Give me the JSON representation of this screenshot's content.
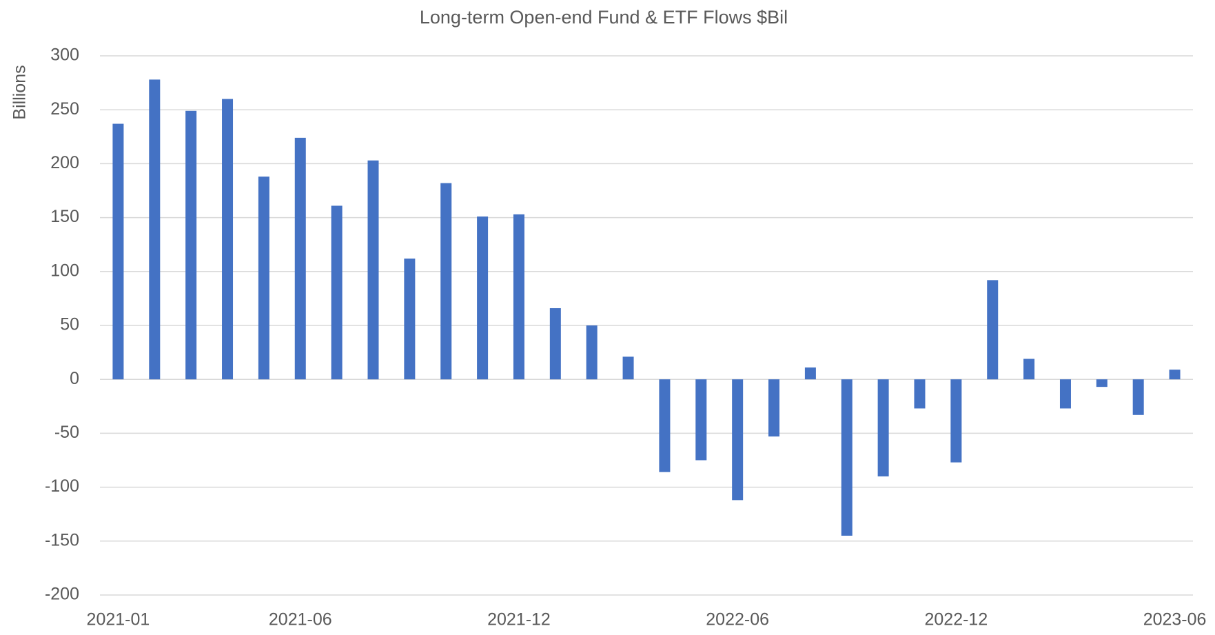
{
  "chart_data": {
    "type": "bar",
    "title": "Long-term Open-end Fund & ETF Flows $Bil",
    "y_label": "Billions",
    "categories": [
      "2021-01",
      null,
      null,
      null,
      null,
      "2021-06",
      null,
      null,
      null,
      null,
      null,
      "2021-12",
      null,
      null,
      null,
      null,
      null,
      "2022-06",
      null,
      null,
      null,
      null,
      null,
      "2022-12",
      null,
      null,
      null,
      null,
      null,
      "2023-06"
    ],
    "values": [
      237,
      278,
      249,
      260,
      188,
      224,
      161,
      203,
      112,
      182,
      151,
      153,
      66,
      50,
      21,
      -86,
      -75,
      -112,
      -53,
      11,
      -145,
      -90,
      -27,
      -77,
      92,
      19,
      -27,
      -7,
      -33,
      9
    ],
    "color": "#4472c4",
    "ylim": [
      -200,
      300
    ],
    "yticks": [
      -200,
      -150,
      -100,
      -50,
      0,
      50,
      100,
      150,
      200,
      250,
      300
    ],
    "grid": true
  }
}
